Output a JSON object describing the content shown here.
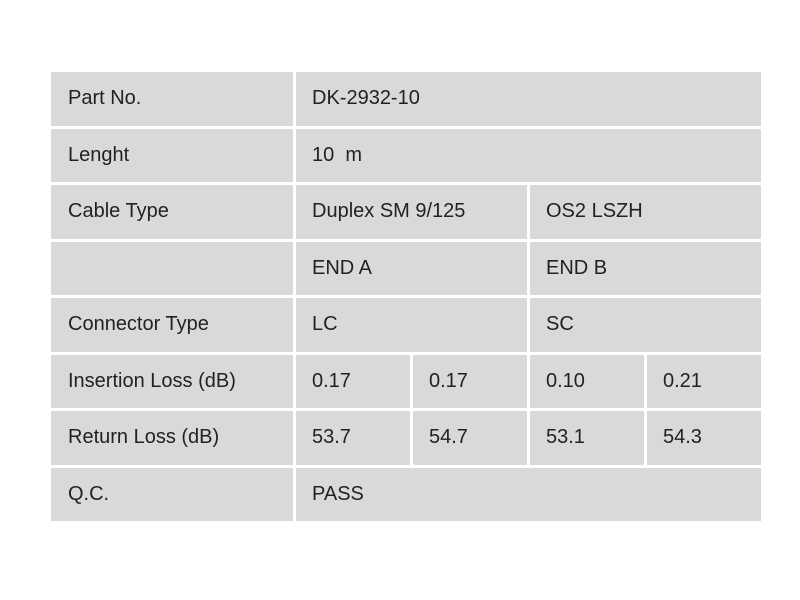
{
  "rows": {
    "part_no": {
      "label": "Part No.",
      "value": "DK-2932-10"
    },
    "length": {
      "label": "Lenght",
      "value": "10  m"
    },
    "cable_type": {
      "label": "Cable Type",
      "value_a": "Duplex SM 9/125",
      "value_b": "OS2 LSZH"
    },
    "ends": {
      "label": "",
      "end_a": "END A",
      "end_b": "END B"
    },
    "connector_type": {
      "label": "Connector Type",
      "end_a": "LC",
      "end_b": "SC"
    },
    "insertion_loss": {
      "label": "Insertion Loss (dB)",
      "values": [
        "0.17",
        "0.17",
        "0.10",
        "0.21"
      ]
    },
    "return_loss": {
      "label": "Return Loss (dB)",
      "values": [
        "53.7",
        "54.7",
        "53.1",
        "54.3"
      ]
    },
    "qc": {
      "label": "Q.C.",
      "value": "PASS"
    }
  }
}
